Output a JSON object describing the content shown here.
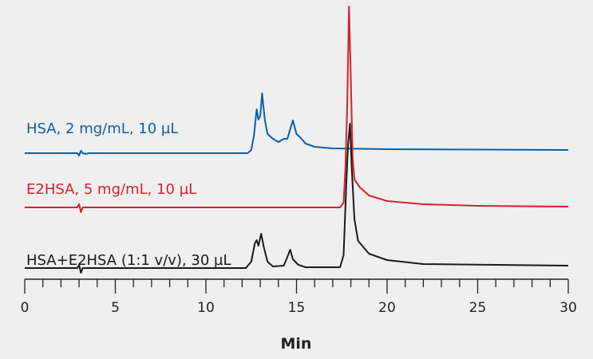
{
  "chart_data": {
    "type": "line",
    "title": "",
    "xlabel": "Min",
    "ylabel": "",
    "xlim": [
      0,
      30
    ],
    "ylim": [
      0,
      350
    ],
    "x_ticks": [
      "0",
      "5",
      "10",
      "15",
      "20",
      "25",
      "30"
    ],
    "x_minor_tick_step": 1,
    "grid": false,
    "series": [
      {
        "name": "HSA, 2 mg/mL, 10 µL",
        "color": "#0a5fa8",
        "points": [
          [
            0,
            158
          ],
          [
            2.9,
            158
          ],
          [
            3.0,
            155
          ],
          [
            3.1,
            161
          ],
          [
            3.2,
            158
          ],
          [
            3.4,
            157
          ],
          [
            3.5,
            158
          ],
          [
            12.3,
            158
          ],
          [
            12.5,
            162
          ],
          [
            12.65,
            180
          ],
          [
            12.8,
            213
          ],
          [
            12.9,
            200
          ],
          [
            13.0,
            205
          ],
          [
            13.1,
            233
          ],
          [
            13.25,
            200
          ],
          [
            13.4,
            182
          ],
          [
            13.7,
            176
          ],
          [
            14.0,
            172
          ],
          [
            14.3,
            176
          ],
          [
            14.5,
            176
          ],
          [
            14.65,
            188
          ],
          [
            14.8,
            199
          ],
          [
            15.0,
            182
          ],
          [
            15.2,
            178
          ],
          [
            15.5,
            170
          ],
          [
            16,
            166
          ],
          [
            17,
            164
          ],
          [
            20,
            163
          ],
          [
            30,
            162
          ]
        ]
      },
      {
        "name": "E2HSA, 5 mg/mL, 10 µL",
        "color": "#d9202a",
        "points": [
          [
            0,
            90
          ],
          [
            2.9,
            90
          ],
          [
            3.0,
            94
          ],
          [
            3.1,
            84
          ],
          [
            3.2,
            90
          ],
          [
            17.4,
            90
          ],
          [
            17.6,
            96
          ],
          [
            17.7,
            140
          ],
          [
            17.8,
            220
          ],
          [
            17.9,
            342
          ],
          [
            18.0,
            250
          ],
          [
            18.1,
            150
          ],
          [
            18.2,
            125
          ],
          [
            18.5,
            115
          ],
          [
            19,
            105
          ],
          [
            20,
            98
          ],
          [
            22,
            94
          ],
          [
            25,
            92
          ],
          [
            30,
            91
          ]
        ]
      },
      {
        "name": "HSA+E2HSA (1:1 v/v), 30 µL",
        "color": "#1a1a1a",
        "points": [
          [
            0,
            14
          ],
          [
            2.9,
            14
          ],
          [
            3.0,
            18
          ],
          [
            3.1,
            8
          ],
          [
            3.2,
            14
          ],
          [
            12.2,
            14
          ],
          [
            12.5,
            22
          ],
          [
            12.7,
            45
          ],
          [
            12.8,
            49
          ],
          [
            12.9,
            42
          ],
          [
            13.05,
            57
          ],
          [
            13.2,
            40
          ],
          [
            13.4,
            22
          ],
          [
            13.7,
            16
          ],
          [
            14.3,
            17
          ],
          [
            14.5,
            28
          ],
          [
            14.65,
            37
          ],
          [
            14.8,
            25
          ],
          [
            15.1,
            18
          ],
          [
            15.5,
            15
          ],
          [
            17.4,
            15
          ],
          [
            17.6,
            30
          ],
          [
            17.75,
            120
          ],
          [
            17.85,
            170
          ],
          [
            17.95,
            195
          ],
          [
            18.05,
            140
          ],
          [
            18.2,
            75
          ],
          [
            18.4,
            48
          ],
          [
            19,
            32
          ],
          [
            20,
            24
          ],
          [
            22,
            19
          ],
          [
            30,
            17
          ]
        ]
      }
    ]
  }
}
